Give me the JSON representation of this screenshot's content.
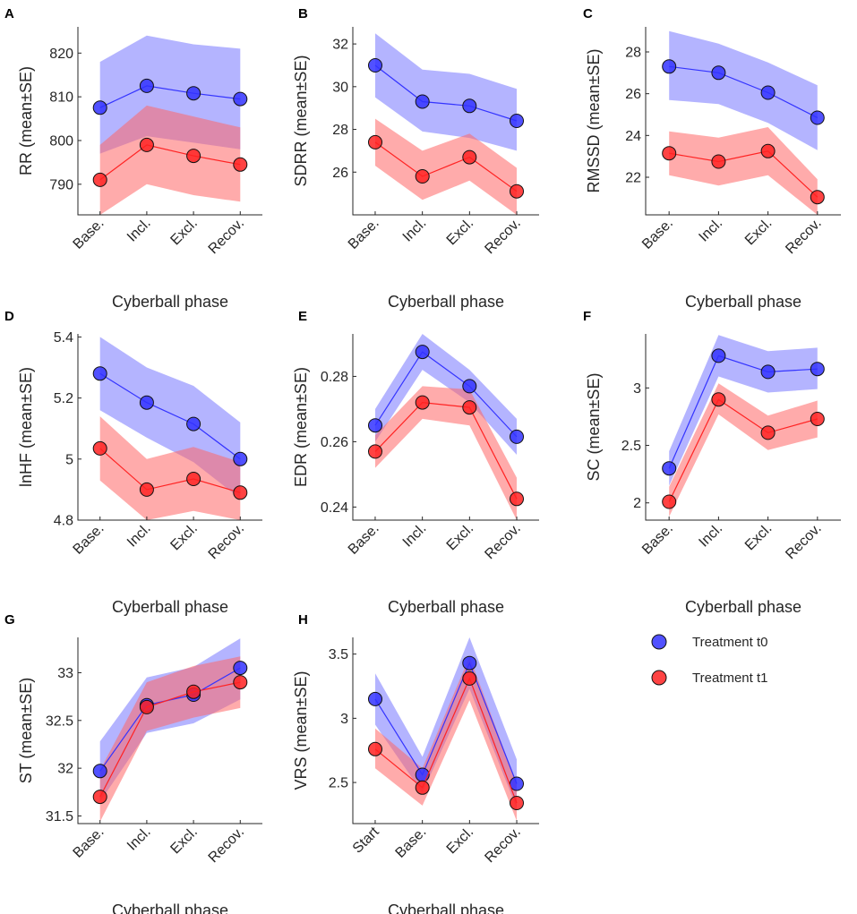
{
  "legend": [
    {
      "label": "Treatment t0",
      "color": "#3333ff",
      "band": "#7777ff"
    },
    {
      "label": "Treatment t1",
      "color": "#ff2222",
      "band": "#ff6666"
    }
  ],
  "chart_data": [
    {
      "panel": "A",
      "type": "line",
      "xlabel": "Cyberball phase",
      "ylabel": "RR (mean±SE)",
      "categories": [
        "Base.",
        "Incl.",
        "Excl.",
        "Recov."
      ],
      "ylim": [
        783,
        826
      ],
      "yticks": [
        790,
        800,
        810,
        820
      ],
      "ytick_labels": [
        "790",
        "800",
        "810",
        "820"
      ],
      "series": [
        {
          "name": "Treatment t0",
          "values": [
            807.5,
            812.5,
            810.8,
            809.5
          ],
          "lower": [
            797,
            801,
            799.5,
            798
          ],
          "upper": [
            818,
            824,
            822,
            821
          ]
        },
        {
          "name": "Treatment t1",
          "values": [
            791,
            799,
            796.5,
            794.5
          ],
          "lower": [
            783,
            790,
            787.5,
            786
          ],
          "upper": [
            799,
            808,
            805.5,
            803
          ]
        }
      ]
    },
    {
      "panel": "B",
      "type": "line",
      "xlabel": "Cyberball phase",
      "ylabel": "SDRR (mean±SE)",
      "categories": [
        "Base.",
        "Incl.",
        "Excl.",
        "Recov."
      ],
      "ylim": [
        24,
        32.8
      ],
      "yticks": [
        26,
        28,
        30,
        32
      ],
      "ytick_labels": [
        "26",
        "28",
        "30",
        "32"
      ],
      "series": [
        {
          "name": "Treatment t0",
          "values": [
            31,
            29.3,
            29.1,
            28.4
          ],
          "lower": [
            29.5,
            27.9,
            27.6,
            27
          ],
          "upper": [
            32.5,
            30.8,
            30.6,
            29.9
          ]
        },
        {
          "name": "Treatment t1",
          "values": [
            27.4,
            25.8,
            26.7,
            25.1
          ],
          "lower": [
            26.3,
            24.7,
            25.6,
            24
          ],
          "upper": [
            28.5,
            27,
            27.8,
            26.2
          ]
        }
      ]
    },
    {
      "panel": "C",
      "type": "line",
      "xlabel": "Cyberball phase",
      "ylabel": "RMSSD (mean±SE)",
      "categories": [
        "Base.",
        "Incl.",
        "Excl.",
        "Recov."
      ],
      "ylim": [
        20.2,
        29.2
      ],
      "yticks": [
        22,
        24,
        26,
        28
      ],
      "ytick_labels": [
        "22",
        "24",
        "26",
        "28"
      ],
      "series": [
        {
          "name": "Treatment t0",
          "values": [
            27.3,
            27,
            26.05,
            24.85
          ],
          "lower": [
            25.7,
            25.5,
            24.6,
            23.3
          ],
          "upper": [
            29,
            28.4,
            27.5,
            26.4
          ]
        },
        {
          "name": "Treatment t1",
          "values": [
            23.15,
            22.75,
            23.25,
            21.05
          ],
          "lower": [
            22.1,
            21.6,
            22.1,
            20.2
          ],
          "upper": [
            24.2,
            23.9,
            24.4,
            21.9
          ]
        }
      ]
    },
    {
      "panel": "D",
      "type": "line",
      "xlabel": "Cyberball phase",
      "ylabel": "lnHF (mean±SE)",
      "categories": [
        "Base.",
        "Incl.",
        "Excl.",
        "Recov."
      ],
      "ylim": [
        4.8,
        5.41
      ],
      "yticks": [
        4.8,
        5,
        5.2,
        5.4
      ],
      "ytick_labels": [
        "4.8",
        "5",
        "5.2",
        "5.4"
      ],
      "series": [
        {
          "name": "Treatment t0",
          "values": [
            5.28,
            5.185,
            5.115,
            5.0
          ],
          "lower": [
            5.16,
            5.07,
            4.99,
            4.87
          ],
          "upper": [
            5.4,
            5.3,
            5.24,
            5.12
          ]
        },
        {
          "name": "Treatment t1",
          "values": [
            5.035,
            4.9,
            4.935,
            4.89
          ],
          "lower": [
            4.93,
            4.8,
            4.83,
            4.8
          ],
          "upper": [
            5.14,
            5.0,
            5.04,
            4.99
          ]
        }
      ]
    },
    {
      "panel": "E",
      "type": "line",
      "xlabel": "Cyberball phase",
      "ylabel": "EDR (mean±SE)",
      "categories": [
        "Base.",
        "Incl.",
        "Excl.",
        "Recov."
      ],
      "ylim": [
        0.236,
        0.293
      ],
      "yticks": [
        0.24,
        0.26,
        0.28
      ],
      "ytick_labels": [
        "0.24",
        "0.26",
        "0.28"
      ],
      "series": [
        {
          "name": "Treatment t0",
          "values": [
            0.265,
            0.2875,
            0.277,
            0.2615
          ],
          "lower": [
            0.26,
            0.282,
            0.272,
            0.256
          ],
          "upper": [
            0.27,
            0.293,
            0.282,
            0.267
          ]
        },
        {
          "name": "Treatment t1",
          "values": [
            0.257,
            0.272,
            0.2705,
            0.2425
          ],
          "lower": [
            0.252,
            0.267,
            0.265,
            0.236
          ],
          "upper": [
            0.262,
            0.277,
            0.276,
            0.249
          ]
        }
      ]
    },
    {
      "panel": "F",
      "type": "line",
      "xlabel": "Cyberball phase",
      "ylabel": "SC (mean±SE)",
      "categories": [
        "Base.",
        "Incl.",
        "Excl.",
        "Recov."
      ],
      "ylim": [
        1.85,
        3.47
      ],
      "yticks": [
        2,
        2.5,
        3
      ],
      "ytick_labels": [
        "2",
        "2.5",
        "3"
      ],
      "series": [
        {
          "name": "Treatment t0",
          "values": [
            2.3,
            3.28,
            3.14,
            3.165
          ],
          "lower": [
            2.15,
            3.1,
            2.96,
            2.99
          ],
          "upper": [
            2.45,
            3.46,
            3.32,
            3.35
          ]
        },
        {
          "name": "Treatment t1",
          "values": [
            2.01,
            2.9,
            2.61,
            2.73
          ],
          "lower": [
            1.88,
            2.77,
            2.46,
            2.57
          ],
          "upper": [
            2.14,
            3.04,
            2.76,
            2.89
          ]
        }
      ]
    },
    {
      "panel": "G",
      "type": "line",
      "xlabel": "Cyberball phase",
      "ylabel": "ST (mean±SE)",
      "categories": [
        "Base.",
        "Incl.",
        "Excl.",
        "Recov."
      ],
      "ylim": [
        31.42,
        33.37
      ],
      "yticks": [
        31.5,
        32,
        32.5,
        33
      ],
      "ytick_labels": [
        "31.5",
        "32",
        "32.5",
        "33"
      ],
      "series": [
        {
          "name": "Treatment t0",
          "values": [
            31.97,
            32.66,
            32.77,
            33.05
          ],
          "lower": [
            31.65,
            32.37,
            32.47,
            32.72
          ],
          "upper": [
            32.28,
            32.95,
            33.06,
            33.36
          ]
        },
        {
          "name": "Treatment t1",
          "values": [
            31.7,
            32.64,
            32.8,
            32.9
          ],
          "lower": [
            31.44,
            32.39,
            32.53,
            32.63
          ],
          "upper": [
            31.98,
            32.9,
            33.07,
            33.17
          ]
        }
      ]
    },
    {
      "panel": "H",
      "type": "line",
      "xlabel": "Cyberball phase",
      "ylabel": "VRS (mean±SE)",
      "categories": [
        "Start",
        "Base.",
        "Excl.",
        "Recov."
      ],
      "ylim": [
        2.18,
        3.63
      ],
      "yticks": [
        2.5,
        3,
        3.5
      ],
      "ytick_labels": [
        "2.5",
        "3",
        "3.5"
      ],
      "series": [
        {
          "name": "Treatment t0",
          "values": [
            3.15,
            2.56,
            3.43,
            2.49
          ],
          "lower": [
            2.95,
            2.42,
            3.23,
            2.3
          ],
          "upper": [
            3.35,
            2.7,
            3.63,
            2.68
          ]
        },
        {
          "name": "Treatment t1",
          "values": [
            2.76,
            2.46,
            3.31,
            2.34
          ],
          "lower": [
            2.61,
            2.32,
            3.14,
            2.2
          ],
          "upper": [
            2.92,
            2.61,
            3.48,
            2.49
          ]
        }
      ]
    }
  ]
}
